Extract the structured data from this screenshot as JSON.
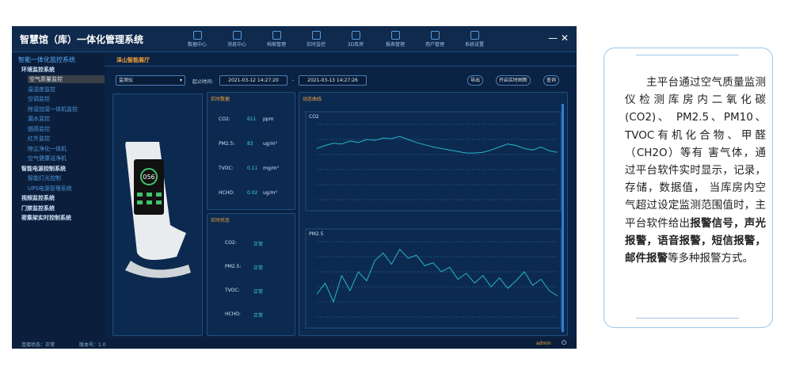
{
  "app": {
    "title": "智慧馆（库）一体化管理系统",
    "nav": [
      "数据中心",
      "消息中心",
      "档案管理",
      "实时监控",
      "3D库房",
      "报表管理",
      "用户管理",
      "系统设置"
    ],
    "sidebar": [
      {
        "label": "智能一体化监控系统",
        "level": 0
      },
      {
        "label": "环境监控系统",
        "level": 1
      },
      {
        "label": "空气质量监控",
        "level": 2,
        "selected": true
      },
      {
        "label": "温湿度监控",
        "level": 2
      },
      {
        "label": "空调监控",
        "level": 2
      },
      {
        "label": "除湿加湿一体机监控",
        "level": 2
      },
      {
        "label": "漏水监控",
        "level": 2
      },
      {
        "label": "烟感监控",
        "level": 2
      },
      {
        "label": "红外监控",
        "level": 2
      },
      {
        "label": "除尘净化一体机",
        "level": 2
      },
      {
        "label": "空气健康洁净机",
        "level": 2
      },
      {
        "label": "智能电源控制系统",
        "level": 1
      },
      {
        "label": "智能灯光控制",
        "level": 2
      },
      {
        "label": "UPS电源管理系统",
        "level": 2
      },
      {
        "label": "视频监控系统",
        "level": 1
      },
      {
        "label": "门禁监控系统",
        "level": 1
      },
      {
        "label": "密集架实时控制系统",
        "level": 1
      }
    ],
    "tab": "泽山智能展厅",
    "toolbar": {
      "device": "监测仪",
      "time_label": "起止时间:",
      "start": "2021-03-12 14:27:20",
      "separator": "-",
      "end": "2021-03-13 14:27:26",
      "buttons": [
        "导出",
        "开启实时刷新",
        "查询"
      ]
    },
    "realtime_title": "实时数据",
    "readings": [
      {
        "name": "CO2:",
        "value": "611",
        "unit": "ppm"
      },
      {
        "name": "PM2.5:",
        "value": "83",
        "unit": "ug/m³"
      },
      {
        "name": "TVOC:",
        "value": "0.11",
        "unit": "mg/m³"
      },
      {
        "name": "HCHO:",
        "value": "0.02",
        "unit": "ug/m³"
      }
    ],
    "status_title": "实时状态",
    "status": [
      {
        "name": "CO2:",
        "state": "正常"
      },
      {
        "name": "PM2.5:",
        "state": "正常"
      },
      {
        "name": "TVOC:",
        "state": "正常"
      },
      {
        "name": "HCHO:",
        "state": "正常"
      }
    ],
    "curve_title": "动态曲线",
    "footer": {
      "connection": "连接状态：正常",
      "version": "版本号：1.0",
      "user": "admin"
    }
  },
  "chart_data": [
    {
      "type": "line",
      "title": "CO2",
      "ylim": [
        0,
        100
      ],
      "color": "#27b4c8",
      "values": [
        68,
        72,
        75,
        74,
        78,
        76,
        80,
        79,
        82,
        81,
        84,
        80,
        76,
        73,
        70,
        68,
        66,
        64,
        62,
        62,
        63,
        66,
        70,
        74,
        72,
        68,
        66,
        70,
        65,
        63
      ]
    },
    {
      "type": "line",
      "title": "PM2.5",
      "ylim": [
        0,
        100
      ],
      "color": "#27b4c8",
      "values": [
        30,
        45,
        20,
        55,
        35,
        60,
        48,
        75,
        85,
        70,
        90,
        78,
        82,
        68,
        72,
        60,
        66,
        50,
        58,
        45,
        55,
        40,
        52,
        38,
        48,
        60,
        42,
        50,
        35,
        28
      ]
    }
  ],
  "description": [
    {
      "text": "主平台通过空气质量监测仪检测库房内二氧化碳(CO2)、 PM2.5、PM10、TVOC有机化合物、甲醛（CH2O）等有 害气体，通过平台软件实时显示，记录，存储，数据值， 当库房内空气超过设定监测范围值时，主平台软件给出",
      "bold": false
    },
    {
      "text": "报警信号，声光报警，语音报警，短信报警，邮件报警",
      "bold": true
    },
    {
      "text": "等多种报警方式。",
      "bold": false
    }
  ]
}
